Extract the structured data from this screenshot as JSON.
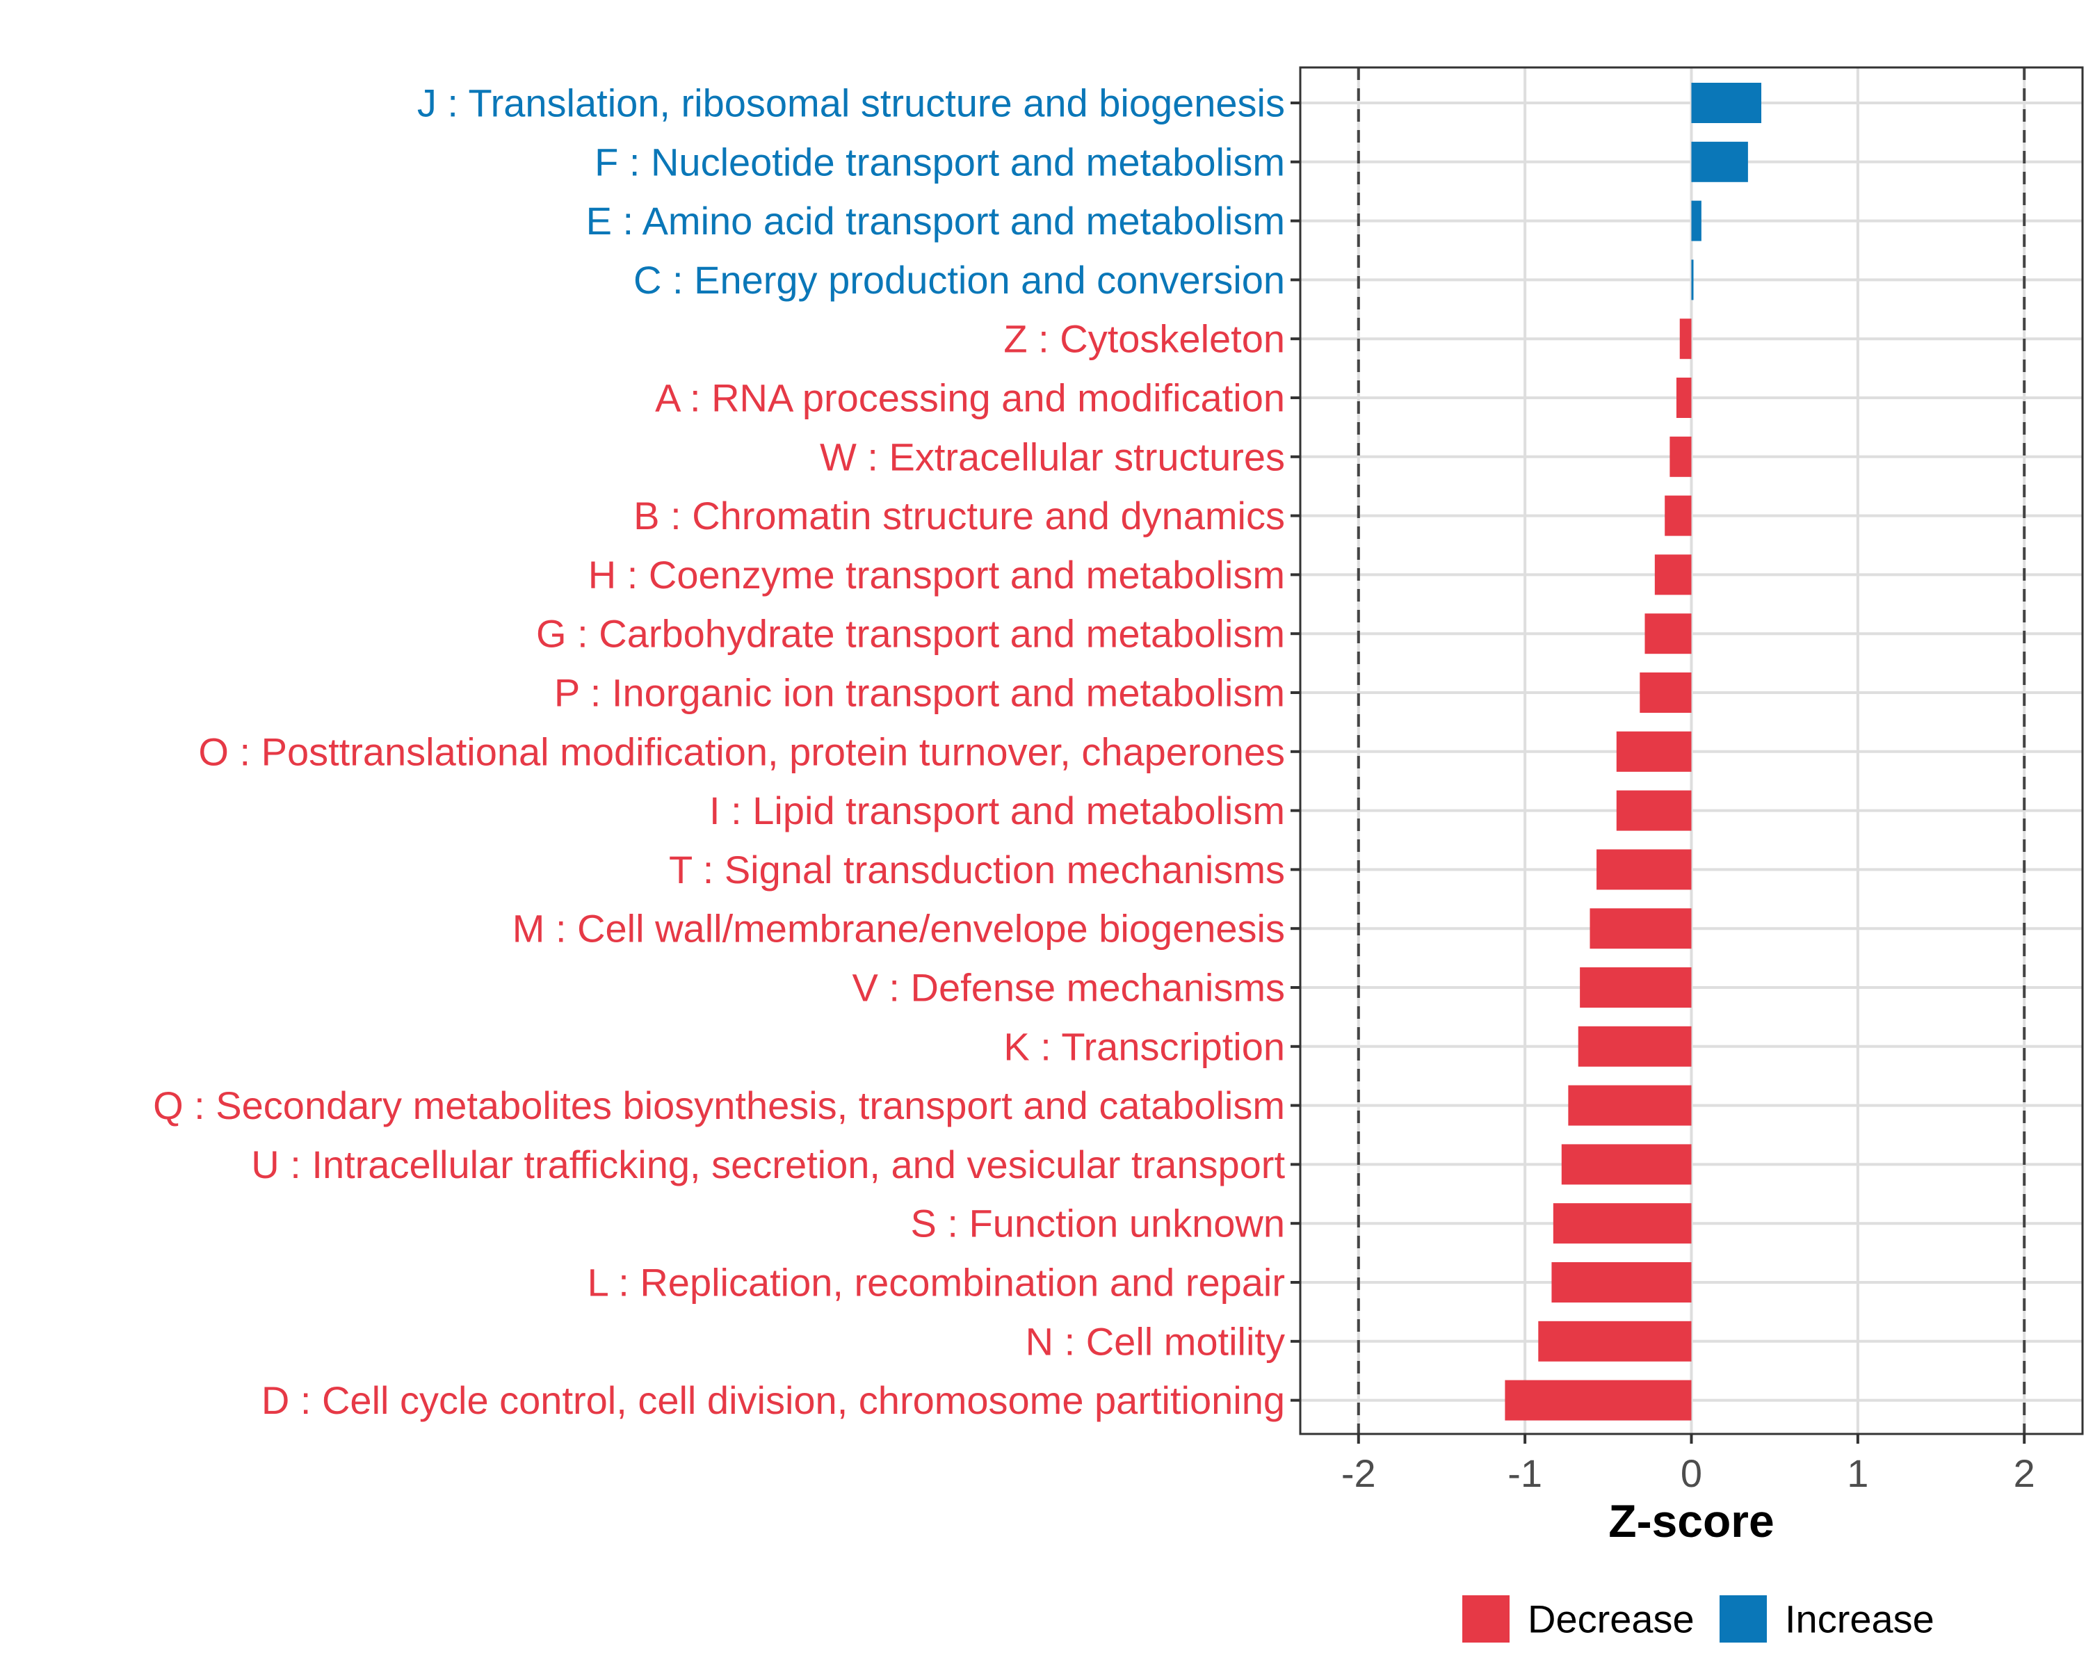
{
  "chart_data": {
    "type": "bar",
    "orientation": "horizontal",
    "xlabel": "Z-score",
    "xlim": [
      -2.35,
      2.35
    ],
    "xticks": [
      -2,
      -1,
      0,
      1,
      2
    ],
    "xtick_labels": [
      "-2",
      "-1",
      "0",
      "1",
      "2"
    ],
    "reference_lines": [
      -2,
      2
    ],
    "grid": true,
    "legend_position": "bottom",
    "legend": [
      {
        "label": "Decrease",
        "color": "#e63946"
      },
      {
        "label": "Increase",
        "color": "#0a77b8"
      }
    ],
    "categories": [
      "J : Translation, ribosomal structure and biogenesis",
      "F : Nucleotide transport and metabolism",
      "E : Amino acid transport and metabolism",
      "C : Energy production and conversion",
      "Z : Cytoskeleton",
      "A : RNA processing and modification",
      "W : Extracellular structures",
      "B : Chromatin structure and dynamics",
      "H : Coenzyme transport and metabolism",
      "G : Carbohydrate transport and metabolism",
      "P : Inorganic ion transport and metabolism",
      "O : Posttranslational modification, protein turnover, chaperones",
      "I : Lipid transport and metabolism",
      "T : Signal transduction mechanisms",
      "M : Cell wall/membrane/envelope biogenesis",
      "V : Defense mechanisms",
      "K : Transcription",
      "Q : Secondary metabolites biosynthesis, transport and catabolism",
      "U : Intracellular trafficking, secretion, and vesicular transport",
      "S : Function unknown",
      "L : Replication, recombination and repair",
      "N : Cell motility",
      "D : Cell cycle control, cell division, chromosome partitioning"
    ],
    "values": [
      0.42,
      0.34,
      0.06,
      0.01,
      -0.07,
      -0.09,
      -0.13,
      -0.16,
      -0.22,
      -0.28,
      -0.31,
      -0.45,
      -0.45,
      -0.57,
      -0.61,
      -0.67,
      -0.68,
      -0.74,
      -0.78,
      -0.83,
      -0.84,
      -0.92,
      -1.12
    ],
    "directions": [
      "Increase",
      "Increase",
      "Increase",
      "Increase",
      "Decrease",
      "Decrease",
      "Decrease",
      "Decrease",
      "Decrease",
      "Decrease",
      "Decrease",
      "Decrease",
      "Decrease",
      "Decrease",
      "Decrease",
      "Decrease",
      "Decrease",
      "Decrease",
      "Decrease",
      "Decrease",
      "Decrease",
      "Decrease",
      "Decrease"
    ]
  }
}
